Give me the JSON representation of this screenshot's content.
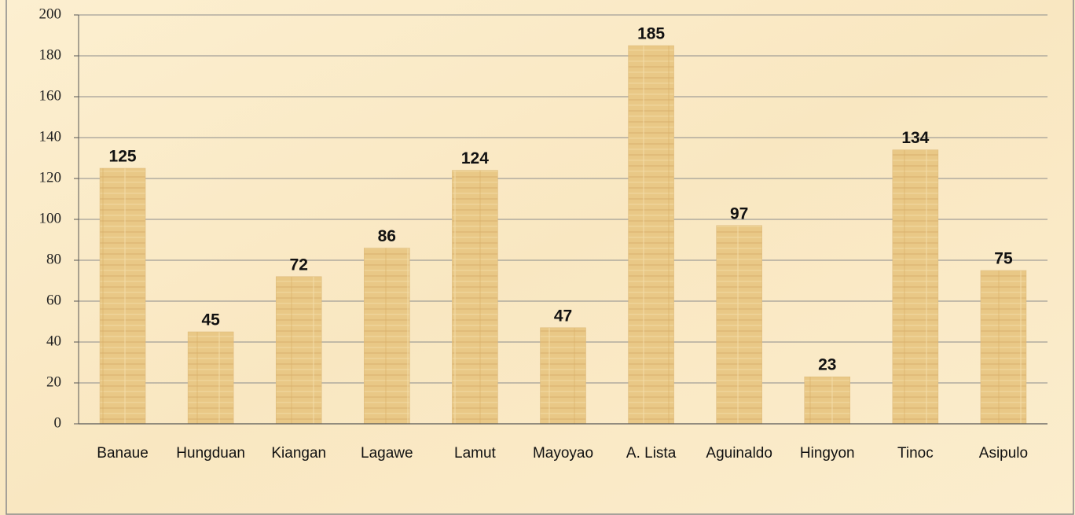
{
  "chart_data": {
    "type": "bar",
    "categories": [
      "Banaue",
      "Hungduan",
      "Kiangan",
      "Lagawe",
      "Lamut",
      "Mayoyao",
      "A. Lista",
      "Aguinaldo",
      "Hingyon",
      "Tinoc",
      "Asipulo"
    ],
    "values": [
      125,
      45,
      72,
      86,
      124,
      47,
      185,
      97,
      23,
      134,
      75
    ],
    "color": "#e6c583",
    "ylim": [
      0,
      200
    ],
    "yticks": [
      0,
      20,
      40,
      60,
      80,
      100,
      120,
      140,
      160,
      180,
      200
    ],
    "grid": true
  }
}
